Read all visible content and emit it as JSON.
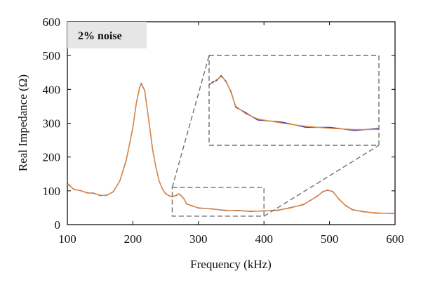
{
  "chart_data": {
    "type": "line",
    "title": "",
    "annotation": "2% noise",
    "xlabel": "Frequency (kHz)",
    "ylabel": "Real Impedance (Ω)",
    "xlim": [
      100,
      600
    ],
    "ylim": [
      0,
      600
    ],
    "xticks": [
      100,
      200,
      300,
      400,
      500,
      600
    ],
    "yticks": [
      0,
      100,
      200,
      300,
      400,
      500,
      600
    ],
    "grid": false,
    "legend": "none",
    "series": [
      {
        "color": "#e8893a",
        "x": [
          100,
          110,
          120,
          130,
          140,
          150,
          160,
          170,
          180,
          190,
          200,
          205,
          210,
          213,
          215,
          218,
          220,
          225,
          230,
          235,
          240,
          245,
          250,
          255,
          260,
          263,
          266,
          270,
          274,
          278,
          282,
          290,
          300,
          320,
          340,
          360,
          380,
          400,
          420,
          440,
          460,
          470,
          480,
          490,
          497,
          505,
          515,
          525,
          535,
          550,
          570,
          600
        ],
        "y": [
          120,
          105,
          100,
          95,
          92,
          87,
          86,
          98,
          128,
          190,
          290,
          355,
          405,
          415,
          410,
          395,
          370,
          295,
          225,
          170,
          130,
          105,
          92,
          85,
          83,
          84,
          87,
          90,
          86,
          75,
          62,
          55,
          50,
          46,
          43,
          41,
          40,
          40,
          43,
          49,
          60,
          70,
          83,
          97,
          103,
          97,
          75,
          55,
          45,
          38,
          35,
          32
        ]
      },
      {
        "color": "#3a3fa0",
        "x": [
          100,
          110,
          120,
          130,
          140,
          150,
          160,
          170,
          180,
          190,
          200,
          205,
          210,
          213,
          215,
          218,
          220,
          225,
          230,
          235,
          240,
          245,
          250,
          255,
          260,
          263,
          266,
          270,
          274,
          278,
          282,
          290,
          300,
          320,
          340,
          360,
          380,
          400,
          420,
          440,
          460,
          470,
          480,
          490,
          497,
          505,
          515,
          525,
          535,
          550,
          570,
          600
        ],
        "y": [
          122,
          104,
          101,
          94,
          93,
          86,
          87,
          97,
          129,
          192,
          288,
          357,
          403,
          418,
          408,
          397,
          368,
          297,
          223,
          171,
          129,
          106,
          91,
          86,
          82,
          85,
          86,
          91,
          85,
          76,
          61,
          56,
          49,
          47,
          42,
          42,
          39,
          41,
          42,
          50,
          59,
          71,
          82,
          98,
          102,
          98,
          74,
          56,
          44,
          39,
          34,
          33
        ]
      }
    ],
    "inset": {
      "source_xlim": [
        260,
        400
      ],
      "source_ylim": [
        25,
        110
      ],
      "placement": "upper-right"
    }
  }
}
